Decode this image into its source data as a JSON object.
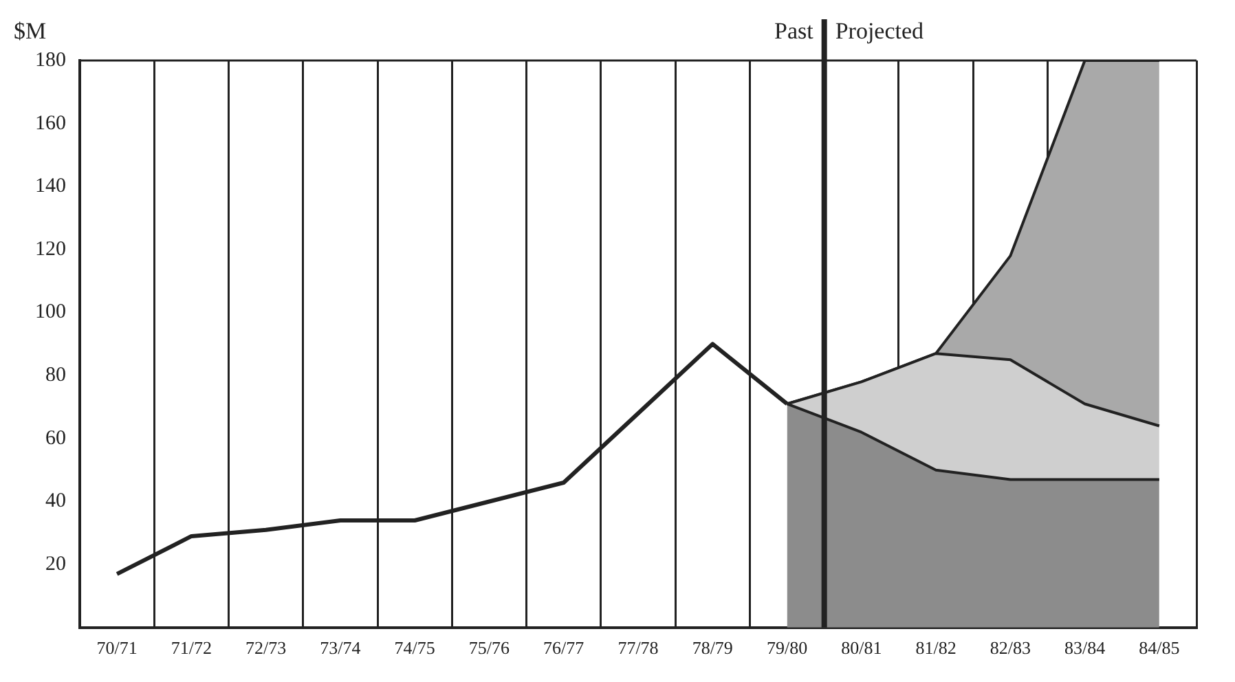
{
  "chart_data": {
    "type": "area",
    "ylabel": "$M",
    "categories": [
      "70/71",
      "71/72",
      "72/73",
      "73/74",
      "74/75",
      "75/76",
      "76/77",
      "77/78",
      "78/79",
      "79/80",
      "80/81",
      "81/82",
      "82/83",
      "83/84",
      "84/85"
    ],
    "series": [
      {
        "type": "line",
        "color": "#222222",
        "values": [
          17,
          29,
          31,
          34,
          34,
          40,
          46,
          68,
          90,
          71,
          null,
          null,
          null,
          null,
          null
        ]
      },
      {
        "color": "#8c8c8c",
        "values": [
          null,
          null,
          null,
          null,
          null,
          null,
          null,
          null,
          null,
          71,
          62,
          50,
          47,
          47,
          47
        ]
      },
      {
        "color": "#cfcfcf",
        "values": [
          null,
          null,
          null,
          null,
          null,
          null,
          null,
          null,
          null,
          0,
          16,
          37,
          38,
          24,
          17
        ]
      },
      {
        "color": "#a9a9a9",
        "values": [
          null,
          null,
          null,
          null,
          null,
          null,
          null,
          null,
          null,
          0,
          0,
          0,
          33,
          109,
          116
        ]
      }
    ],
    "stacked": true,
    "ylim": [
      0,
      180
    ],
    "yticks": [
      20,
      40,
      60,
      80,
      100,
      120,
      140,
      160,
      180
    ],
    "grid": "x",
    "legend": false,
    "marker": "none",
    "ref_lines": [
      {
        "axis": "x",
        "value": "80/81",
        "label": "Projected",
        "color": "#222222"
      }
    ],
    "annotations": [
      "Past"
    ]
  }
}
